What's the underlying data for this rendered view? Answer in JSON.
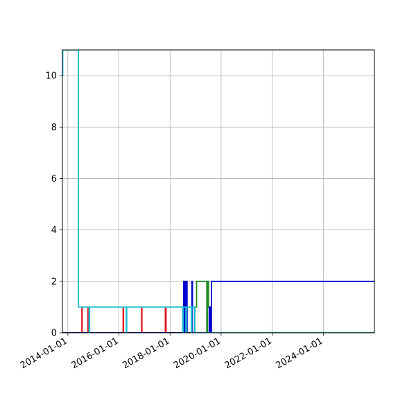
{
  "chart_data": {
    "type": "line",
    "title": "",
    "xlabel": "",
    "ylabel": "",
    "x_axis": "date",
    "xlim": [
      "2013-10-15",
      "2025-12-31"
    ],
    "ylim": [
      0,
      11
    ],
    "grid": true,
    "legend": "none",
    "x_ticks": [
      "2014-01-01",
      "2016-01-01",
      "2018-01-01",
      "2020-01-01",
      "2022-01-01",
      "2024-01-01"
    ],
    "y_ticks": [
      0,
      2,
      4,
      6,
      8,
      10
    ],
    "colors": {
      "red": "#e41a1c",
      "green": "#228b22",
      "blue": "#0000cc",
      "cyan": "#17becf"
    },
    "series": [
      {
        "color": "red",
        "points": [
          [
            "2013-10-15",
            0
          ],
          [
            "2014-07-20",
            0
          ],
          [
            "2014-07-20",
            1
          ],
          [
            "2014-07-25",
            1
          ],
          [
            "2014-07-25",
            0
          ],
          [
            "2014-10-15",
            0
          ],
          [
            "2014-10-15",
            1
          ],
          [
            "2014-10-20",
            1
          ],
          [
            "2014-10-20",
            0
          ],
          [
            "2016-03-01",
            0
          ],
          [
            "2016-03-01",
            1
          ],
          [
            "2016-03-06",
            1
          ],
          [
            "2016-03-06",
            0
          ],
          [
            "2016-11-20",
            0
          ],
          [
            "2016-11-20",
            1
          ],
          [
            "2016-11-25",
            1
          ],
          [
            "2016-11-25",
            0
          ],
          [
            "2017-10-25",
            0
          ],
          [
            "2017-10-25",
            1
          ],
          [
            "2017-11-05",
            1
          ],
          [
            "2017-11-05",
            0
          ],
          [
            "2025-12-31",
            0
          ]
        ]
      },
      {
        "color": "green",
        "points": [
          [
            "2013-10-15",
            0
          ],
          [
            "2018-12-20",
            0
          ],
          [
            "2018-12-20",
            1
          ],
          [
            "2019-01-15",
            1
          ],
          [
            "2019-01-15",
            2
          ],
          [
            "2019-06-10",
            2
          ],
          [
            "2019-06-10",
            0
          ],
          [
            "2019-06-20",
            0
          ],
          [
            "2019-06-20",
            2
          ],
          [
            "2019-07-05",
            2
          ],
          [
            "2019-07-05",
            1
          ],
          [
            "2019-08-05",
            1
          ],
          [
            "2019-08-05",
            0
          ],
          [
            "2025-12-31",
            0
          ]
        ]
      },
      {
        "color": "blue",
        "points": [
          [
            "2013-10-15",
            0
          ],
          [
            "2018-07-15",
            0
          ],
          [
            "2018-07-15",
            2
          ],
          [
            "2018-07-22",
            2
          ],
          [
            "2018-07-22",
            0
          ],
          [
            "2018-08-05",
            0
          ],
          [
            "2018-08-05",
            2
          ],
          [
            "2018-08-12",
            2
          ],
          [
            "2018-08-12",
            0
          ],
          [
            "2018-08-25",
            0
          ],
          [
            "2018-08-25",
            2
          ],
          [
            "2018-09-01",
            2
          ],
          [
            "2018-09-01",
            0
          ],
          [
            "2018-11-10",
            0
          ],
          [
            "2018-11-10",
            2
          ],
          [
            "2018-11-17",
            2
          ],
          [
            "2018-11-17",
            0
          ],
          [
            "2019-07-15",
            0
          ],
          [
            "2019-07-15",
            1
          ],
          [
            "2019-08-01",
            1
          ],
          [
            "2019-08-01",
            0
          ],
          [
            "2019-08-15",
            0
          ],
          [
            "2019-08-15",
            2
          ],
          [
            "2025-12-31",
            2
          ]
        ]
      },
      {
        "color": "cyan",
        "points": [
          [
            "2013-10-15",
            10
          ],
          [
            "2013-10-20",
            10
          ],
          [
            "2013-10-20",
            11
          ],
          [
            "2014-06-01",
            11
          ],
          [
            "2014-06-01",
            1
          ],
          [
            "2014-11-01",
            1
          ],
          [
            "2014-11-01",
            0
          ],
          [
            "2014-11-08",
            0
          ],
          [
            "2014-11-08",
            1
          ],
          [
            "2016-04-15",
            1
          ],
          [
            "2016-04-15",
            0
          ],
          [
            "2016-04-22",
            0
          ],
          [
            "2016-04-22",
            1
          ],
          [
            "2018-07-01",
            1
          ],
          [
            "2018-07-01",
            0
          ],
          [
            "2018-07-08",
            0
          ],
          [
            "2018-07-08",
            1
          ],
          [
            "2018-08-15",
            1
          ],
          [
            "2018-08-15",
            0
          ],
          [
            "2018-08-22",
            0
          ],
          [
            "2018-08-22",
            1
          ],
          [
            "2018-11-01",
            1
          ],
          [
            "2018-11-01",
            0
          ],
          [
            "2018-11-08",
            0
          ],
          [
            "2018-11-08",
            1
          ],
          [
            "2018-12-20",
            1
          ],
          [
            "2018-12-20",
            0
          ],
          [
            "2025-12-31",
            0
          ]
        ]
      }
    ]
  }
}
